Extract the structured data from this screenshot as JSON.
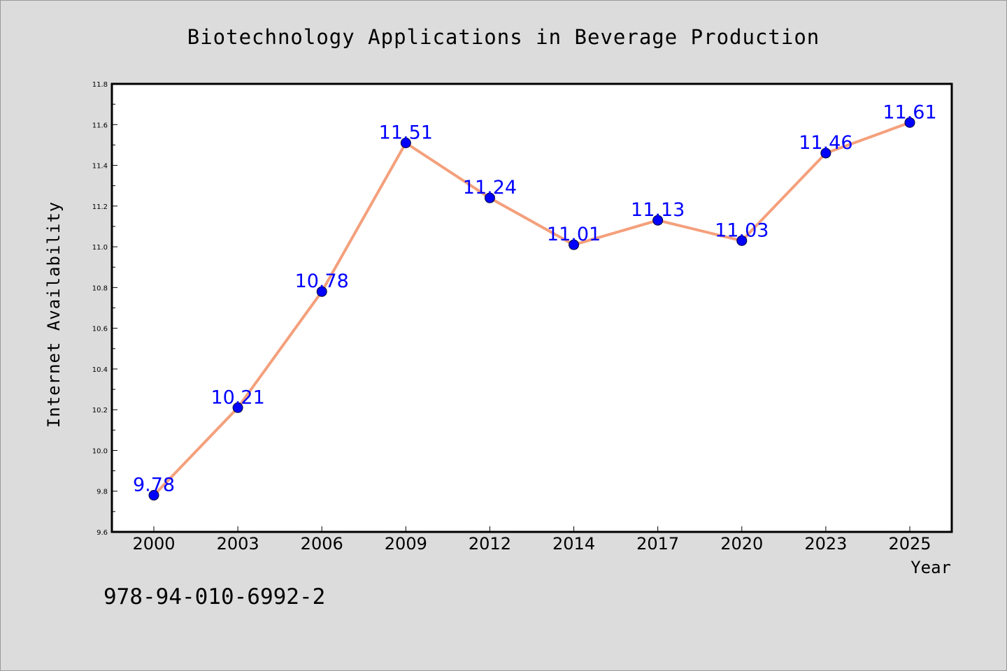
{
  "chart_data": {
    "type": "line",
    "title": "Biotechnology Applications in Beverage Production",
    "xlabel": "Year",
    "ylabel": "Internet Availability",
    "categories": [
      "2000",
      "2003",
      "2006",
      "2009",
      "2012",
      "2014",
      "2017",
      "2020",
      "2023",
      "2025"
    ],
    "series": [
      {
        "values": [
          9.78,
          10.21,
          10.78,
          11.51,
          11.24,
          11.01,
          11.13,
          11.03,
          11.46,
          11.61
        ]
      }
    ],
    "data_labels": [
      "9.78",
      "10.21",
      "10.78",
      "11.51",
      "11.24",
      "11.01",
      "11.13",
      "11.03",
      "11.46",
      "11.61"
    ],
    "ylim": [
      9.6,
      11.8
    ],
    "yticks": [
      "9.6",
      "9.8",
      "10.0",
      "10.2",
      "10.4",
      "10.6",
      "10.8",
      "11.0",
      "11.2",
      "11.4",
      "11.6",
      "11.8"
    ],
    "grid": false,
    "legend": "none",
    "colors": {
      "line": "#f4a07c",
      "marker": "#0000ff",
      "data_label": "#0000ff",
      "background": "#dcdcdc",
      "plot_area": "#ffffff"
    }
  },
  "footer": {
    "code": "978-94-010-6992-2"
  }
}
